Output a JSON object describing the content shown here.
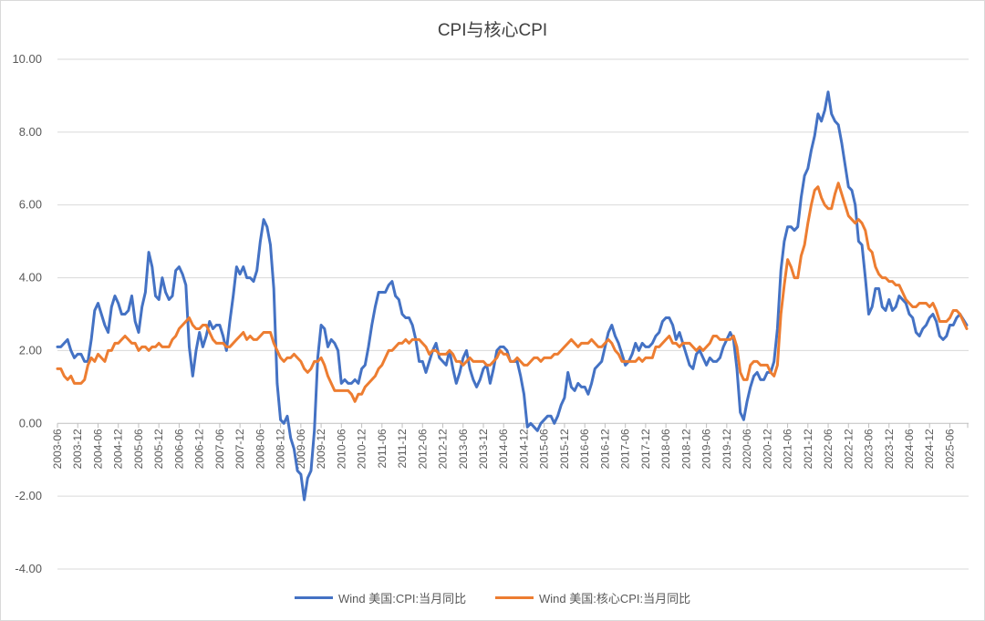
{
  "chart_data": {
    "type": "line",
    "title": "CPI与核心CPI",
    "xlabel": "",
    "ylabel": "",
    "ylim": [
      -4,
      10
    ],
    "yticks": [
      "-4.00",
      "-2.00",
      "0.00",
      "2.00",
      "4.00",
      "6.00",
      "8.00",
      "10.00"
    ],
    "grid": true,
    "legend_position": "bottom",
    "start_month": "2003-06",
    "end_month": "2025-11",
    "x_tick_every_months": 6,
    "series": [
      {
        "name": "Wind 美国:CPI:当月同比",
        "color": "#4472C4",
        "values": [
          2.1,
          2.1,
          2.2,
          2.3,
          2.0,
          1.8,
          1.9,
          1.9,
          1.7,
          1.7,
          2.3,
          3.1,
          3.3,
          3.0,
          2.7,
          2.5,
          3.2,
          3.5,
          3.3,
          3.0,
          3.0,
          3.1,
          3.5,
          2.8,
          2.5,
          3.2,
          3.6,
          4.7,
          4.3,
          3.5,
          3.4,
          4.0,
          3.6,
          3.4,
          3.5,
          4.2,
          4.3,
          4.1,
          3.8,
          2.1,
          1.3,
          2.0,
          2.5,
          2.1,
          2.4,
          2.8,
          2.6,
          2.7,
          2.7,
          2.4,
          2.0,
          2.8,
          3.5,
          4.3,
          4.1,
          4.3,
          4.0,
          4.0,
          3.9,
          4.2,
          5.0,
          5.6,
          5.4,
          4.9,
          3.7,
          1.1,
          0.1,
          0.0,
          0.2,
          -0.4,
          -0.7,
          -1.3,
          -1.4,
          -2.1,
          -1.5,
          -1.3,
          -0.2,
          1.8,
          2.7,
          2.6,
          2.1,
          2.3,
          2.2,
          2.0,
          1.1,
          1.2,
          1.1,
          1.1,
          1.2,
          1.1,
          1.5,
          1.6,
          2.1,
          2.7,
          3.2,
          3.6,
          3.6,
          3.6,
          3.8,
          3.9,
          3.5,
          3.4,
          3.0,
          2.9,
          2.9,
          2.7,
          2.3,
          1.7,
          1.7,
          1.4,
          1.7,
          2.0,
          2.2,
          1.8,
          1.7,
          1.6,
          2.0,
          1.5,
          1.1,
          1.4,
          1.8,
          2.0,
          1.5,
          1.2,
          1.0,
          1.2,
          1.5,
          1.6,
          1.1,
          1.5,
          2.0,
          2.1,
          2.1,
          2.0,
          1.7,
          1.7,
          1.7,
          1.3,
          0.8,
          -0.1,
          0.0,
          -0.1,
          -0.2,
          0.0,
          0.1,
          0.2,
          0.2,
          0.0,
          0.2,
          0.5,
          0.7,
          1.4,
          1.0,
          0.9,
          1.1,
          1.0,
          1.0,
          0.8,
          1.1,
          1.5,
          1.6,
          1.7,
          2.1,
          2.5,
          2.7,
          2.4,
          2.2,
          1.9,
          1.6,
          1.7,
          1.9,
          2.2,
          2.0,
          2.2,
          2.1,
          2.1,
          2.2,
          2.4,
          2.5,
          2.8,
          2.9,
          2.9,
          2.7,
          2.3,
          2.5,
          2.2,
          1.9,
          1.6,
          1.5,
          1.9,
          2.0,
          1.8,
          1.6,
          1.8,
          1.7,
          1.7,
          1.8,
          2.1,
          2.3,
          2.5,
          2.3,
          1.5,
          0.3,
          0.1,
          0.6,
          1.0,
          1.3,
          1.4,
          1.2,
          1.2,
          1.4,
          1.4,
          1.7,
          2.6,
          4.2,
          5.0,
          5.4,
          5.4,
          5.3,
          5.4,
          6.2,
          6.8,
          7.0,
          7.5,
          7.9,
          8.5,
          8.3,
          8.6,
          9.1,
          8.5,
          8.3,
          8.2,
          7.7,
          7.1,
          6.5,
          6.4,
          6.0,
          5.0,
          4.9,
          4.0,
          3.0,
          3.2,
          3.7,
          3.7,
          3.2,
          3.1,
          3.4,
          3.1,
          3.2,
          3.5,
          3.4,
          3.3,
          3.0,
          2.9,
          2.5,
          2.4,
          2.6,
          2.7,
          2.9,
          3.0,
          2.8,
          2.4,
          2.3,
          2.4,
          2.7,
          2.7,
          2.9,
          3.0,
          null,
          2.7
        ]
      },
      {
        "name": "Wind 美国:核心CPI:当月同比",
        "color": "#ED7D31",
        "values": [
          1.5,
          1.5,
          1.3,
          1.2,
          1.3,
          1.1,
          1.1,
          1.1,
          1.2,
          1.6,
          1.8,
          1.7,
          1.9,
          1.8,
          1.7,
          2.0,
          2.0,
          2.2,
          2.2,
          2.3,
          2.4,
          2.3,
          2.2,
          2.2,
          2.0,
          2.1,
          2.1,
          2.0,
          2.1,
          2.1,
          2.2,
          2.1,
          2.1,
          2.1,
          2.3,
          2.4,
          2.6,
          2.7,
          2.8,
          2.9,
          2.7,
          2.6,
          2.6,
          2.7,
          2.7,
          2.5,
          2.3,
          2.2,
          2.2,
          2.2,
          2.1,
          2.1,
          2.2,
          2.3,
          2.4,
          2.5,
          2.3,
          2.4,
          2.3,
          2.3,
          2.4,
          2.5,
          2.5,
          2.5,
          2.2,
          2.0,
          1.8,
          1.7,
          1.8,
          1.8,
          1.9,
          1.8,
          1.7,
          1.5,
          1.4,
          1.5,
          1.7,
          1.7,
          1.8,
          1.6,
          1.3,
          1.1,
          0.9,
          0.9,
          0.9,
          0.9,
          0.9,
          0.8,
          0.6,
          0.8,
          0.8,
          1.0,
          1.1,
          1.2,
          1.3,
          1.5,
          1.6,
          1.8,
          2.0,
          2.0,
          2.1,
          2.2,
          2.2,
          2.3,
          2.2,
          2.3,
          2.3,
          2.3,
          2.2,
          2.1,
          1.9,
          2.0,
          2.0,
          1.9,
          1.9,
          1.9,
          2.0,
          1.9,
          1.7,
          1.7,
          1.6,
          1.7,
          1.8,
          1.7,
          1.7,
          1.7,
          1.7,
          1.6,
          1.6,
          1.7,
          1.8,
          2.0,
          1.9,
          1.9,
          1.7,
          1.7,
          1.8,
          1.7,
          1.6,
          1.6,
          1.7,
          1.8,
          1.8,
          1.7,
          1.8,
          1.8,
          1.8,
          1.9,
          1.9,
          2.0,
          2.1,
          2.2,
          2.3,
          2.2,
          2.1,
          2.2,
          2.2,
          2.2,
          2.3,
          2.2,
          2.1,
          2.1,
          2.2,
          2.3,
          2.2,
          2.0,
          1.9,
          1.7,
          1.7,
          1.7,
          1.7,
          1.7,
          1.8,
          1.7,
          1.8,
          1.8,
          1.8,
          2.1,
          2.1,
          2.2,
          2.3,
          2.4,
          2.2,
          2.2,
          2.1,
          2.2,
          2.2,
          2.2,
          2.1,
          2.0,
          2.1,
          2.0,
          2.1,
          2.2,
          2.4,
          2.4,
          2.3,
          2.3,
          2.3,
          2.3,
          2.4,
          2.1,
          1.4,
          1.2,
          1.2,
          1.6,
          1.7,
          1.7,
          1.6,
          1.6,
          1.6,
          1.4,
          1.3,
          1.6,
          3.0,
          3.8,
          4.5,
          4.3,
          4.0,
          4.0,
          4.6,
          4.9,
          5.5,
          6.0,
          6.4,
          6.5,
          6.2,
          6.0,
          5.9,
          5.9,
          6.3,
          6.6,
          6.3,
          6.0,
          5.7,
          5.6,
          5.5,
          5.6,
          5.5,
          5.3,
          4.8,
          4.7,
          4.3,
          4.1,
          4.0,
          4.0,
          3.9,
          3.9,
          3.8,
          3.8,
          3.6,
          3.4,
          3.3,
          3.2,
          3.2,
          3.3,
          3.3,
          3.3,
          3.2,
          3.3,
          3.1,
          2.8,
          2.8,
          2.8,
          2.9,
          3.1,
          3.1,
          3.0,
          null,
          2.6
        ]
      }
    ]
  }
}
